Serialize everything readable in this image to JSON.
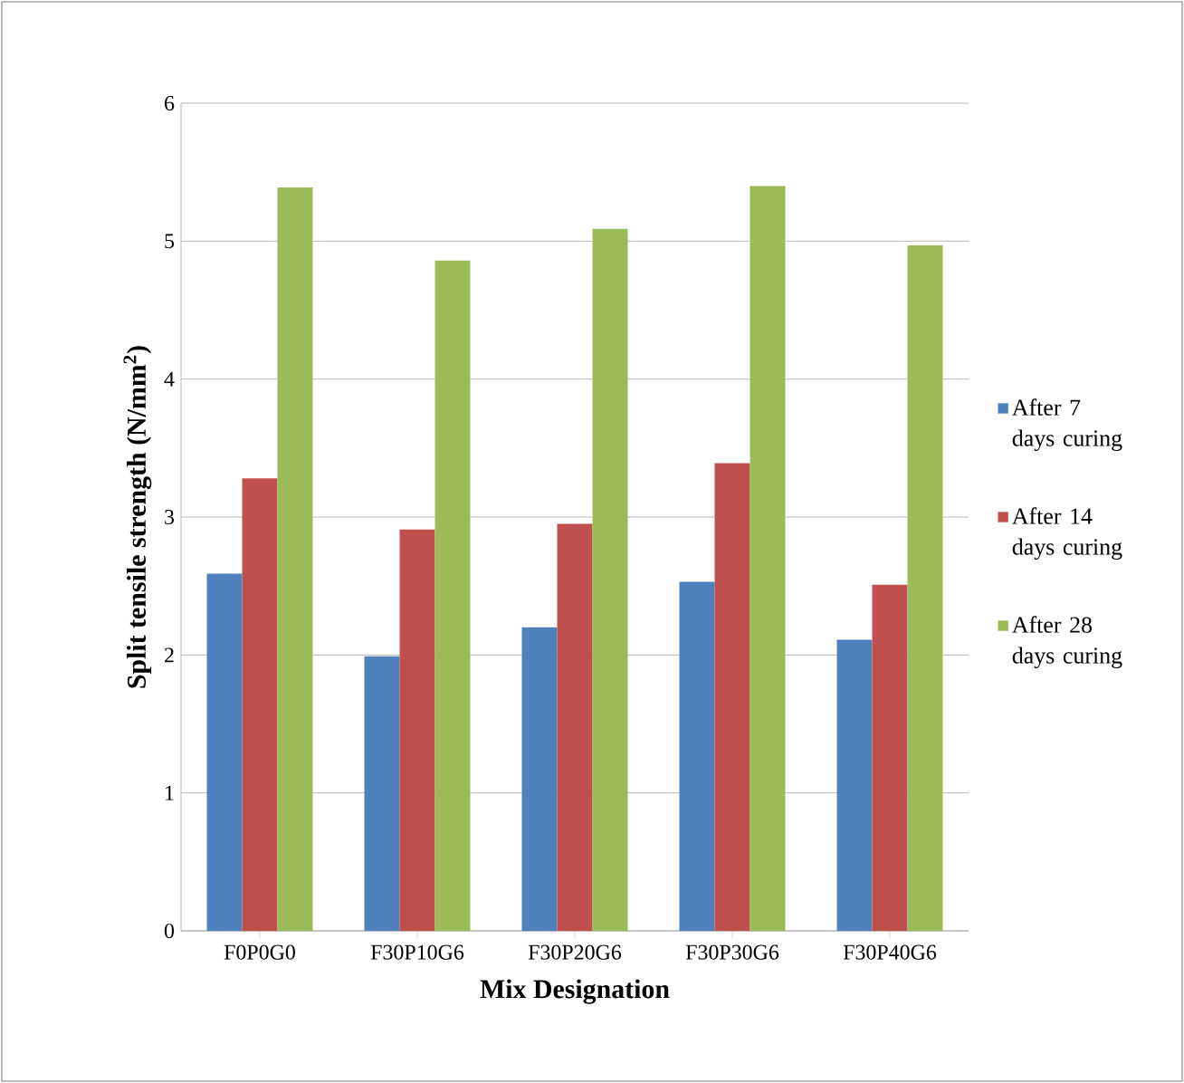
{
  "chart_data": {
    "type": "bar",
    "xlabel": "Mix Designation",
    "ylabel": "Split tensile  strength (N/mm$^{2}$)",
    "categories": [
      "F0P0G0",
      "F30P10G6",
      "F30P20G6",
      "F30P30G6",
      "F30P40G6"
    ],
    "series": [
      {
        "name": "After 7 days curing",
        "color": "#4f81bd",
        "values": [
          2.59,
          1.99,
          2.2,
          2.53,
          2.11
        ]
      },
      {
        "name": "After 14 days curing",
        "color": "#c0504d",
        "values": [
          3.28,
          2.91,
          2.95,
          3.39,
          2.51
        ]
      },
      {
        "name": "After 28 days curing",
        "color": "#9bbb59",
        "values": [
          5.39,
          4.86,
          5.09,
          5.4,
          4.97
        ]
      }
    ],
    "ylim": [
      0,
      6
    ],
    "yticks": [
      0,
      1,
      2,
      3,
      4,
      5,
      6
    ],
    "grid": "y",
    "legend": "right"
  }
}
